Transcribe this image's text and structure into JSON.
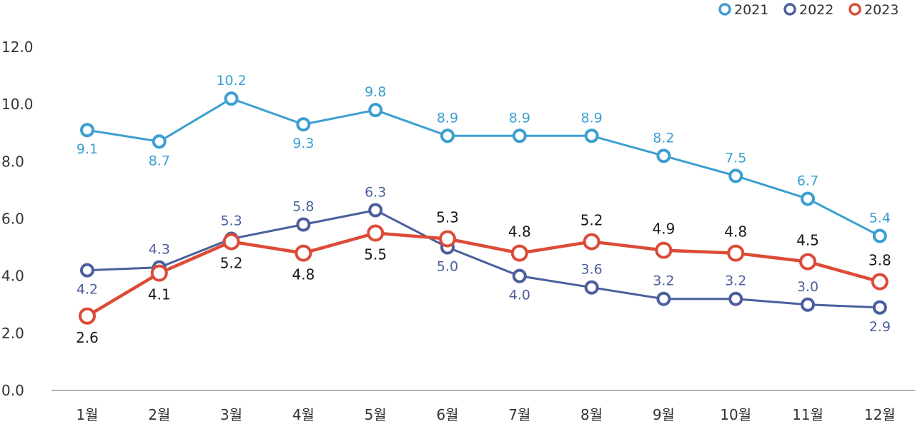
{
  "chart_data": {
    "type": "line",
    "categories": [
      "1월",
      "2월",
      "3월",
      "4월",
      "5월",
      "6월",
      "7월",
      "8월",
      "9월",
      "10월",
      "11월",
      "12월"
    ],
    "y_ticks": [
      "0.0",
      "2.0",
      "4.0",
      "6.0",
      "8.0",
      "10.0",
      "12.0"
    ],
    "ylim": [
      0,
      12
    ],
    "grid": false,
    "legend_position": "top-right",
    "series": [
      {
        "name": "2021",
        "color": "#3c9fd1",
        "values": [
          9.1,
          8.7,
          10.2,
          9.3,
          9.8,
          8.9,
          8.9,
          8.9,
          8.2,
          7.5,
          6.7,
          5.4
        ],
        "labels": [
          "9.1",
          "8.7",
          "10.2",
          "9.3",
          "9.8",
          "8.9",
          "8.9",
          "8.9",
          "8.2",
          "7.5",
          "6.7",
          "5.4"
        ]
      },
      {
        "name": "2022",
        "color": "#4a5f9c",
        "values": [
          4.2,
          4.3,
          5.3,
          5.8,
          6.3,
          5.0,
          4.0,
          3.6,
          3.2,
          3.2,
          3.0,
          2.9
        ],
        "labels": [
          "4.2",
          "4.3",
          "5.3",
          "5.8",
          "6.3",
          "5.0",
          "4.0",
          "3.6",
          "3.2",
          "3.2",
          "3.0",
          "2.9"
        ]
      },
      {
        "name": "2023",
        "color": "#dc4b37",
        "values": [
          2.6,
          4.1,
          5.2,
          4.8,
          5.5,
          5.3,
          4.8,
          5.2,
          4.9,
          4.8,
          4.5,
          3.8
        ],
        "labels": [
          "2.6",
          "4.1",
          "5.2",
          "4.8",
          "5.5",
          "5.3",
          "4.8",
          "5.2",
          "4.9",
          "4.8",
          "4.5",
          "3.8"
        ]
      }
    ]
  }
}
